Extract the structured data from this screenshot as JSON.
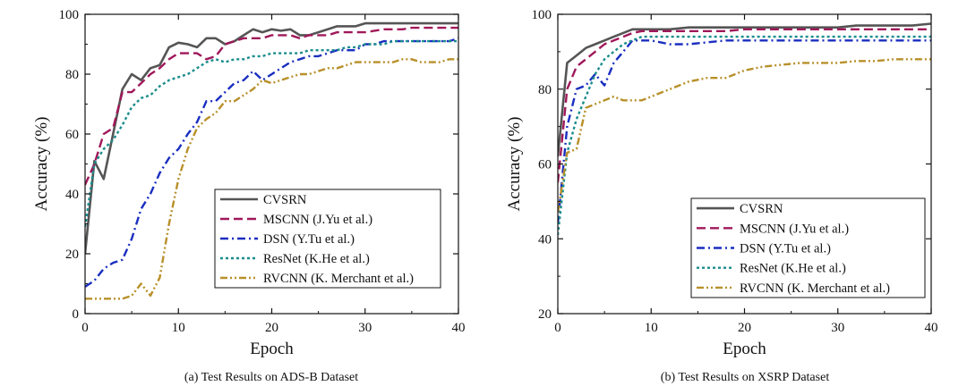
{
  "chart_data": [
    {
      "type": "line",
      "title": "(a) Test Results on ADS-B Dataset",
      "xlabel": "Epoch",
      "ylabel": "Accuracy (%)",
      "xlim": [
        0,
        40
      ],
      "ylim": [
        0,
        100
      ],
      "xticks": [
        0,
        10,
        20,
        30,
        40
      ],
      "yticks": [
        0,
        20,
        40,
        60,
        80,
        100
      ],
      "legend_position": "bottom-right",
      "series": [
        {
          "name": "CVSRN",
          "color": "#555555",
          "style": "solid",
          "x": [
            0,
            1,
            2,
            3,
            4,
            5,
            6,
            7,
            8,
            9,
            10,
            11,
            12,
            13,
            14,
            15,
            16,
            17,
            18,
            19,
            20,
            21,
            22,
            23,
            24,
            25,
            26,
            27,
            28,
            29,
            30,
            31,
            32,
            33,
            34,
            35,
            36,
            37,
            38,
            39,
            40
          ],
          "y": [
            20,
            51,
            45,
            60,
            75,
            80,
            78,
            82,
            83,
            89,
            90.5,
            90,
            89,
            92,
            92,
            90,
            91,
            93,
            95,
            94,
            95,
            94.5,
            95,
            93,
            93,
            94,
            95,
            96,
            96,
            96,
            97,
            97,
            97,
            97,
            97,
            97,
            97,
            97,
            97,
            97,
            97
          ]
        },
        {
          "name": "MSCNN (J.Yu et al.)",
          "color": "#a0185a",
          "style": "dashed",
          "x": [
            0,
            1,
            2,
            3,
            4,
            5,
            6,
            7,
            8,
            9,
            10,
            11,
            12,
            13,
            14,
            15,
            16,
            17,
            18,
            19,
            20,
            21,
            22,
            23,
            24,
            25,
            26,
            27,
            28,
            29,
            30,
            31,
            32,
            33,
            34,
            35,
            36,
            37,
            38,
            39,
            40
          ],
          "y": [
            43,
            50,
            60,
            62,
            74,
            74,
            77,
            80,
            82,
            85,
            87,
            87,
            87,
            85,
            86,
            90,
            91,
            92,
            92,
            92,
            93,
            93,
            93,
            92,
            93,
            93,
            93,
            94,
            94,
            94,
            94,
            94.5,
            95,
            95,
            95,
            95.5,
            95.5,
            95.5,
            95.5,
            95.5,
            95.5
          ]
        },
        {
          "name": "DSN (Y.Tu et al.)",
          "color": "#1a2ec0",
          "style": "dashdot",
          "x": [
            0,
            1,
            2,
            3,
            4,
            5,
            6,
            7,
            8,
            9,
            10,
            11,
            12,
            13,
            14,
            15,
            16,
            17,
            18,
            19,
            20,
            21,
            22,
            23,
            24,
            25,
            26,
            27,
            28,
            29,
            30,
            31,
            32,
            33,
            34,
            35,
            36,
            37,
            38,
            39,
            40
          ],
          "y": [
            9,
            11,
            15,
            17,
            18,
            25,
            35,
            40,
            47,
            52,
            55,
            60,
            64,
            71,
            71,
            74,
            77,
            78,
            81,
            78,
            80,
            82,
            84,
            85,
            86,
            86,
            87,
            88,
            88,
            88,
            90,
            90,
            91,
            91,
            91,
            91,
            91,
            91,
            91,
            91,
            92
          ]
        },
        {
          "name": "ResNet (K.He et al.)",
          "color": "#198c8c",
          "style": "dotted",
          "x": [
            0,
            1,
            2,
            3,
            4,
            5,
            6,
            7,
            8,
            9,
            10,
            11,
            12,
            13,
            14,
            15,
            16,
            17,
            18,
            19,
            20,
            21,
            22,
            23,
            24,
            25,
            26,
            27,
            28,
            29,
            30,
            31,
            32,
            33,
            34,
            35,
            36,
            37,
            38,
            39,
            40
          ],
          "y": [
            29,
            50,
            55,
            58,
            63,
            69,
            72,
            73,
            76,
            78,
            79,
            80,
            82,
            84,
            85,
            84,
            85,
            85,
            86,
            86,
            87,
            87,
            87,
            87,
            88,
            88,
            88,
            88,
            89,
            89,
            90,
            90,
            90,
            91,
            91,
            91,
            91,
            91,
            91,
            91,
            91
          ]
        },
        {
          "name": "RVCNN (K. Merchant et al.)",
          "color": "#b8902a",
          "style": "dashdotdot",
          "x": [
            0,
            1,
            2,
            3,
            4,
            5,
            6,
            7,
            8,
            9,
            10,
            11,
            12,
            13,
            14,
            15,
            16,
            17,
            18,
            19,
            20,
            21,
            22,
            23,
            24,
            25,
            26,
            27,
            28,
            29,
            30,
            31,
            32,
            33,
            34,
            35,
            36,
            37,
            38,
            39,
            40
          ],
          "y": [
            5,
            5,
            5,
            5,
            5,
            6,
            10,
            6,
            12,
            30,
            45,
            55,
            62,
            65,
            67,
            71,
            71,
            73,
            75,
            78,
            77,
            78,
            79,
            80,
            80,
            81,
            82,
            82,
            83,
            84,
            84,
            84,
            84,
            84,
            85,
            85,
            84,
            84,
            84,
            85,
            85
          ]
        }
      ]
    },
    {
      "type": "line",
      "title": "(b) Test Results on XSRP Dataset",
      "xlabel": "Epoch",
      "ylabel": "Accuracy (%)",
      "xlim": [
        0,
        40
      ],
      "ylim": [
        20,
        100
      ],
      "xticks": [
        0,
        10,
        20,
        30,
        40
      ],
      "yticks": [
        20,
        40,
        60,
        80,
        100
      ],
      "legend_position": "bottom-right",
      "series": [
        {
          "name": "CVSRN",
          "color": "#555555",
          "style": "solid",
          "x": [
            0,
            1,
            2,
            3,
            4,
            5,
            6,
            7,
            8,
            9,
            10,
            12,
            14,
            16,
            18,
            20,
            22,
            24,
            26,
            28,
            30,
            32,
            34,
            36,
            38,
            40
          ],
          "y": [
            62,
            87,
            89,
            91,
            92,
            93,
            94,
            95,
            96,
            96,
            96,
            96,
            96.5,
            96.5,
            96.5,
            96.5,
            96.5,
            96.5,
            96.5,
            96.5,
            96.5,
            97,
            97,
            97,
            97,
            97.5
          ]
        },
        {
          "name": "MSCNN (J.Yu et al.)",
          "color": "#a0185a",
          "style": "dashed",
          "x": [
            0,
            1,
            2,
            3,
            4,
            5,
            6,
            7,
            8,
            9,
            10,
            12,
            14,
            16,
            18,
            20,
            22,
            24,
            26,
            28,
            30,
            32,
            34,
            36,
            38,
            40
          ],
          "y": [
            55,
            80,
            86,
            88,
            90,
            92,
            93,
            94,
            95,
            95.5,
            95.5,
            95.5,
            95.5,
            95.5,
            95.5,
            96,
            96,
            96,
            96,
            96,
            96,
            96,
            96,
            96,
            96,
            96
          ]
        },
        {
          "name": "DSN (Y.Tu et al.)",
          "color": "#1a2ec0",
          "style": "dashdot",
          "x": [
            0,
            1,
            2,
            3,
            4,
            5,
            6,
            7,
            8,
            9,
            10,
            12,
            14,
            16,
            18,
            20,
            22,
            24,
            26,
            28,
            30,
            32,
            34,
            36,
            38,
            40
          ],
          "y": [
            44,
            70,
            80,
            81,
            84,
            81,
            87,
            90,
            93,
            93,
            93,
            92,
            92,
            92.5,
            93,
            93,
            93,
            93,
            93,
            93,
            93,
            93,
            93,
            93,
            93,
            93
          ]
        },
        {
          "name": "ResNet (K.He et al.)",
          "color": "#198c8c",
          "style": "dotted",
          "x": [
            0,
            1,
            2,
            3,
            4,
            5,
            6,
            7,
            8,
            9,
            10,
            12,
            14,
            16,
            18,
            20,
            22,
            24,
            26,
            28,
            30,
            32,
            34,
            36,
            38,
            40
          ],
          "y": [
            41,
            63,
            72,
            78,
            84,
            88,
            90,
            92,
            93,
            94,
            94,
            94,
            94,
            94,
            94,
            94,
            94,
            94,
            94,
            94,
            94,
            94,
            94,
            94,
            94,
            94
          ]
        },
        {
          "name": "RVCNN (K. Merchant et al.)",
          "color": "#b8902a",
          "style": "dashdotdot",
          "x": [
            0,
            1,
            2,
            3,
            4,
            5,
            6,
            7,
            8,
            9,
            10,
            12,
            14,
            16,
            18,
            20,
            22,
            24,
            26,
            28,
            30,
            32,
            34,
            36,
            38,
            40
          ],
          "y": [
            47,
            63,
            64,
            75,
            76,
            77,
            78,
            77,
            77,
            77,
            78,
            80,
            82,
            83,
            83,
            85,
            86,
            86.5,
            87,
            87,
            87,
            87.5,
            87.5,
            88,
            88,
            88
          ]
        }
      ]
    }
  ]
}
